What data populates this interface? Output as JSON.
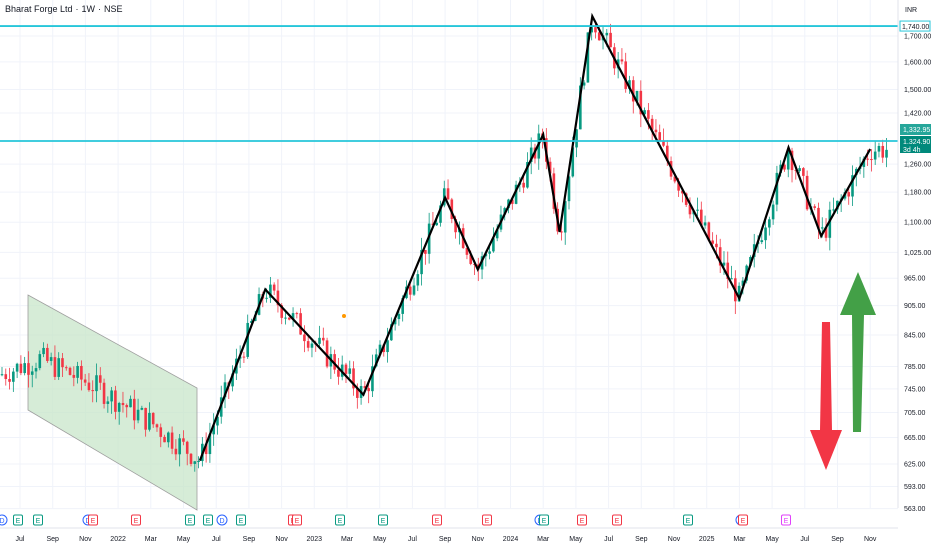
{
  "header": {
    "symbol": "Bharat Forge Ltd",
    "interval": "1W",
    "exchange": "NSE",
    "sep1": "·",
    "sep2": "·"
  },
  "chart_data": {
    "type": "candlestick",
    "currency": "INR",
    "y_scale": "log",
    "ylim": [
      555,
      1780
    ],
    "y_ticks": [
      "1,740.00",
      "1,700.00",
      "1,600.00",
      "1,500.00",
      "1,420.00",
      "1,332.95",
      "1,324.90",
      "1,260.00",
      "1,180.00",
      "1,100.00",
      "1,025.00",
      "965.00",
      "905.00",
      "845.00",
      "785.00",
      "745.00",
      "705.00",
      "665.00",
      "625.00",
      "593.00",
      "563.00"
    ],
    "x_ticks": [
      "Jul",
      "Sep",
      "Nov",
      "2022",
      "Mar",
      "May",
      "Jul",
      "Sep",
      "Nov",
      "2023",
      "Mar",
      "May",
      "Jul",
      "Sep",
      "Nov",
      "2024",
      "Mar",
      "May",
      "Jul",
      "Sep",
      "Nov",
      "2025",
      "Mar",
      "May",
      "Jul",
      "Sep",
      "Nov"
    ],
    "horizontal_lines": [
      {
        "value": 1740,
        "label": "1,740.00",
        "color": "#26c6da"
      },
      {
        "value": 1330,
        "label": "",
        "color": "#26c6da"
      }
    ],
    "price_labels": [
      {
        "value": 1332.95,
        "text": "1,332.95",
        "bg": "#26a69a"
      },
      {
        "value": 1324.9,
        "text": "1,324.90",
        "bg": "#00897b"
      },
      {
        "text": "3d 4h",
        "bg": "#00897b"
      }
    ],
    "zigzag": [
      {
        "date": "2022-06",
        "price": 630
      },
      {
        "date": "2022-10",
        "price": 940
      },
      {
        "date": "2023-04",
        "price": 735
      },
      {
        "date": "2023-09",
        "price": 1165
      },
      {
        "date": "2023-11",
        "price": 985
      },
      {
        "date": "2024-03",
        "price": 1350
      },
      {
        "date": "2024-04",
        "price": 1075
      },
      {
        "date": "2024-06",
        "price": 1780
      },
      {
        "date": "2025-03",
        "price": 920
      },
      {
        "date": "2025-06",
        "price": 1310
      },
      {
        "date": "2025-08",
        "price": 1065
      },
      {
        "date": "2025-11",
        "price": 1305
      }
    ],
    "channel": {
      "color": "#c8e6c9"
    },
    "arrows": [
      {
        "direction": "down",
        "color": "#f23645"
      },
      {
        "direction": "up",
        "color": "#43a047"
      }
    ],
    "event_markers": [
      {
        "label": "D",
        "color": "#2962ff"
      },
      {
        "label": "E",
        "color": "#089981"
      },
      {
        "label": "E",
        "color": "#089981"
      },
      {
        "label": "D",
        "color": "#2962ff"
      },
      {
        "label": "E",
        "color": "#f23645"
      },
      {
        "label": "E",
        "color": "#f23645"
      },
      {
        "label": "E",
        "color": "#089981"
      },
      {
        "label": "E",
        "color": "#089981"
      },
      {
        "label": "D",
        "color": "#2962ff"
      },
      {
        "label": "E",
        "color": "#089981"
      },
      {
        "label": "E",
        "color": "#f23645"
      },
      {
        "label": "E",
        "color": "#f23645"
      },
      {
        "label": "E",
        "color": "#089981"
      },
      {
        "label": "E",
        "color": "#089981"
      },
      {
        "label": "E",
        "color": "#f23645"
      },
      {
        "label": "E",
        "color": "#f23645"
      },
      {
        "label": "D",
        "color": "#2962ff"
      },
      {
        "label": "E",
        "color": "#089981"
      },
      {
        "label": "E",
        "color": "#f23645"
      },
      {
        "label": "E",
        "color": "#f23645"
      },
      {
        "label": "E",
        "color": "#089981"
      },
      {
        "label": "D",
        "color": "#2962ff"
      },
      {
        "label": "E",
        "color": "#f23645"
      },
      {
        "label": "E",
        "color": "#e040fb"
      }
    ],
    "colors": {
      "up": "#089981",
      "down": "#f23645",
      "zigzag": "#000000",
      "grid": "#f0f3fa",
      "text": "#131722"
    }
  }
}
